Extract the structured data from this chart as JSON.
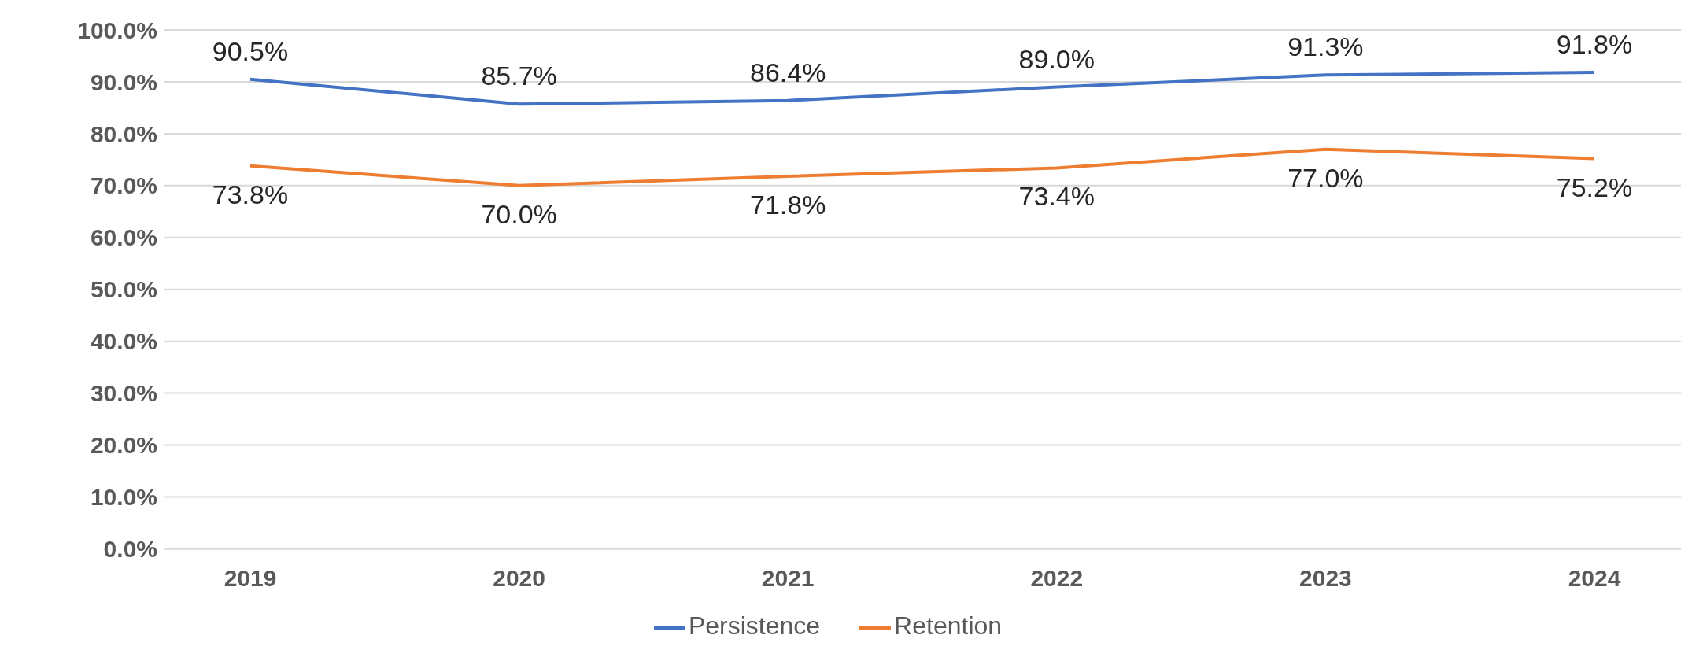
{
  "chart_data": {
    "type": "line",
    "categories": [
      "2019",
      "2020",
      "2021",
      "2022",
      "2023",
      "2024"
    ],
    "series": [
      {
        "name": "Persistence",
        "color": "#4472c4",
        "values": [
          90.5,
          85.7,
          86.4,
          89.0,
          91.3,
          91.8
        ],
        "value_labels": [
          "90.5%",
          "85.7%",
          "86.4%",
          "89.0%",
          "91.3%",
          "91.8%"
        ]
      },
      {
        "name": "Retention",
        "color": "#ed7d31",
        "values": [
          73.8,
          70.0,
          71.8,
          73.4,
          77.0,
          75.2
        ],
        "value_labels": [
          "73.8%",
          "70.0%",
          "71.8%",
          "73.4%",
          "77.0%",
          "75.2%"
        ]
      }
    ],
    "ylim": [
      0,
      100
    ],
    "yticks": [
      {
        "value": 0,
        "label": "0.0%"
      },
      {
        "value": 10,
        "label": "10.0%"
      },
      {
        "value": 20,
        "label": "20.0%"
      },
      {
        "value": 30,
        "label": "30.0%"
      },
      {
        "value": 40,
        "label": "40.0%"
      },
      {
        "value": 50,
        "label": "50.0%"
      },
      {
        "value": 60,
        "label": "60.0%"
      },
      {
        "value": 70,
        "label": "70.0%"
      },
      {
        "value": 80,
        "label": "80.0%"
      },
      {
        "value": 90,
        "label": "90.0%"
      },
      {
        "value": 100,
        "label": "100.0%"
      }
    ],
    "grid": "y",
    "legend": "bottom",
    "marker": "none",
    "line_style": "solid"
  }
}
